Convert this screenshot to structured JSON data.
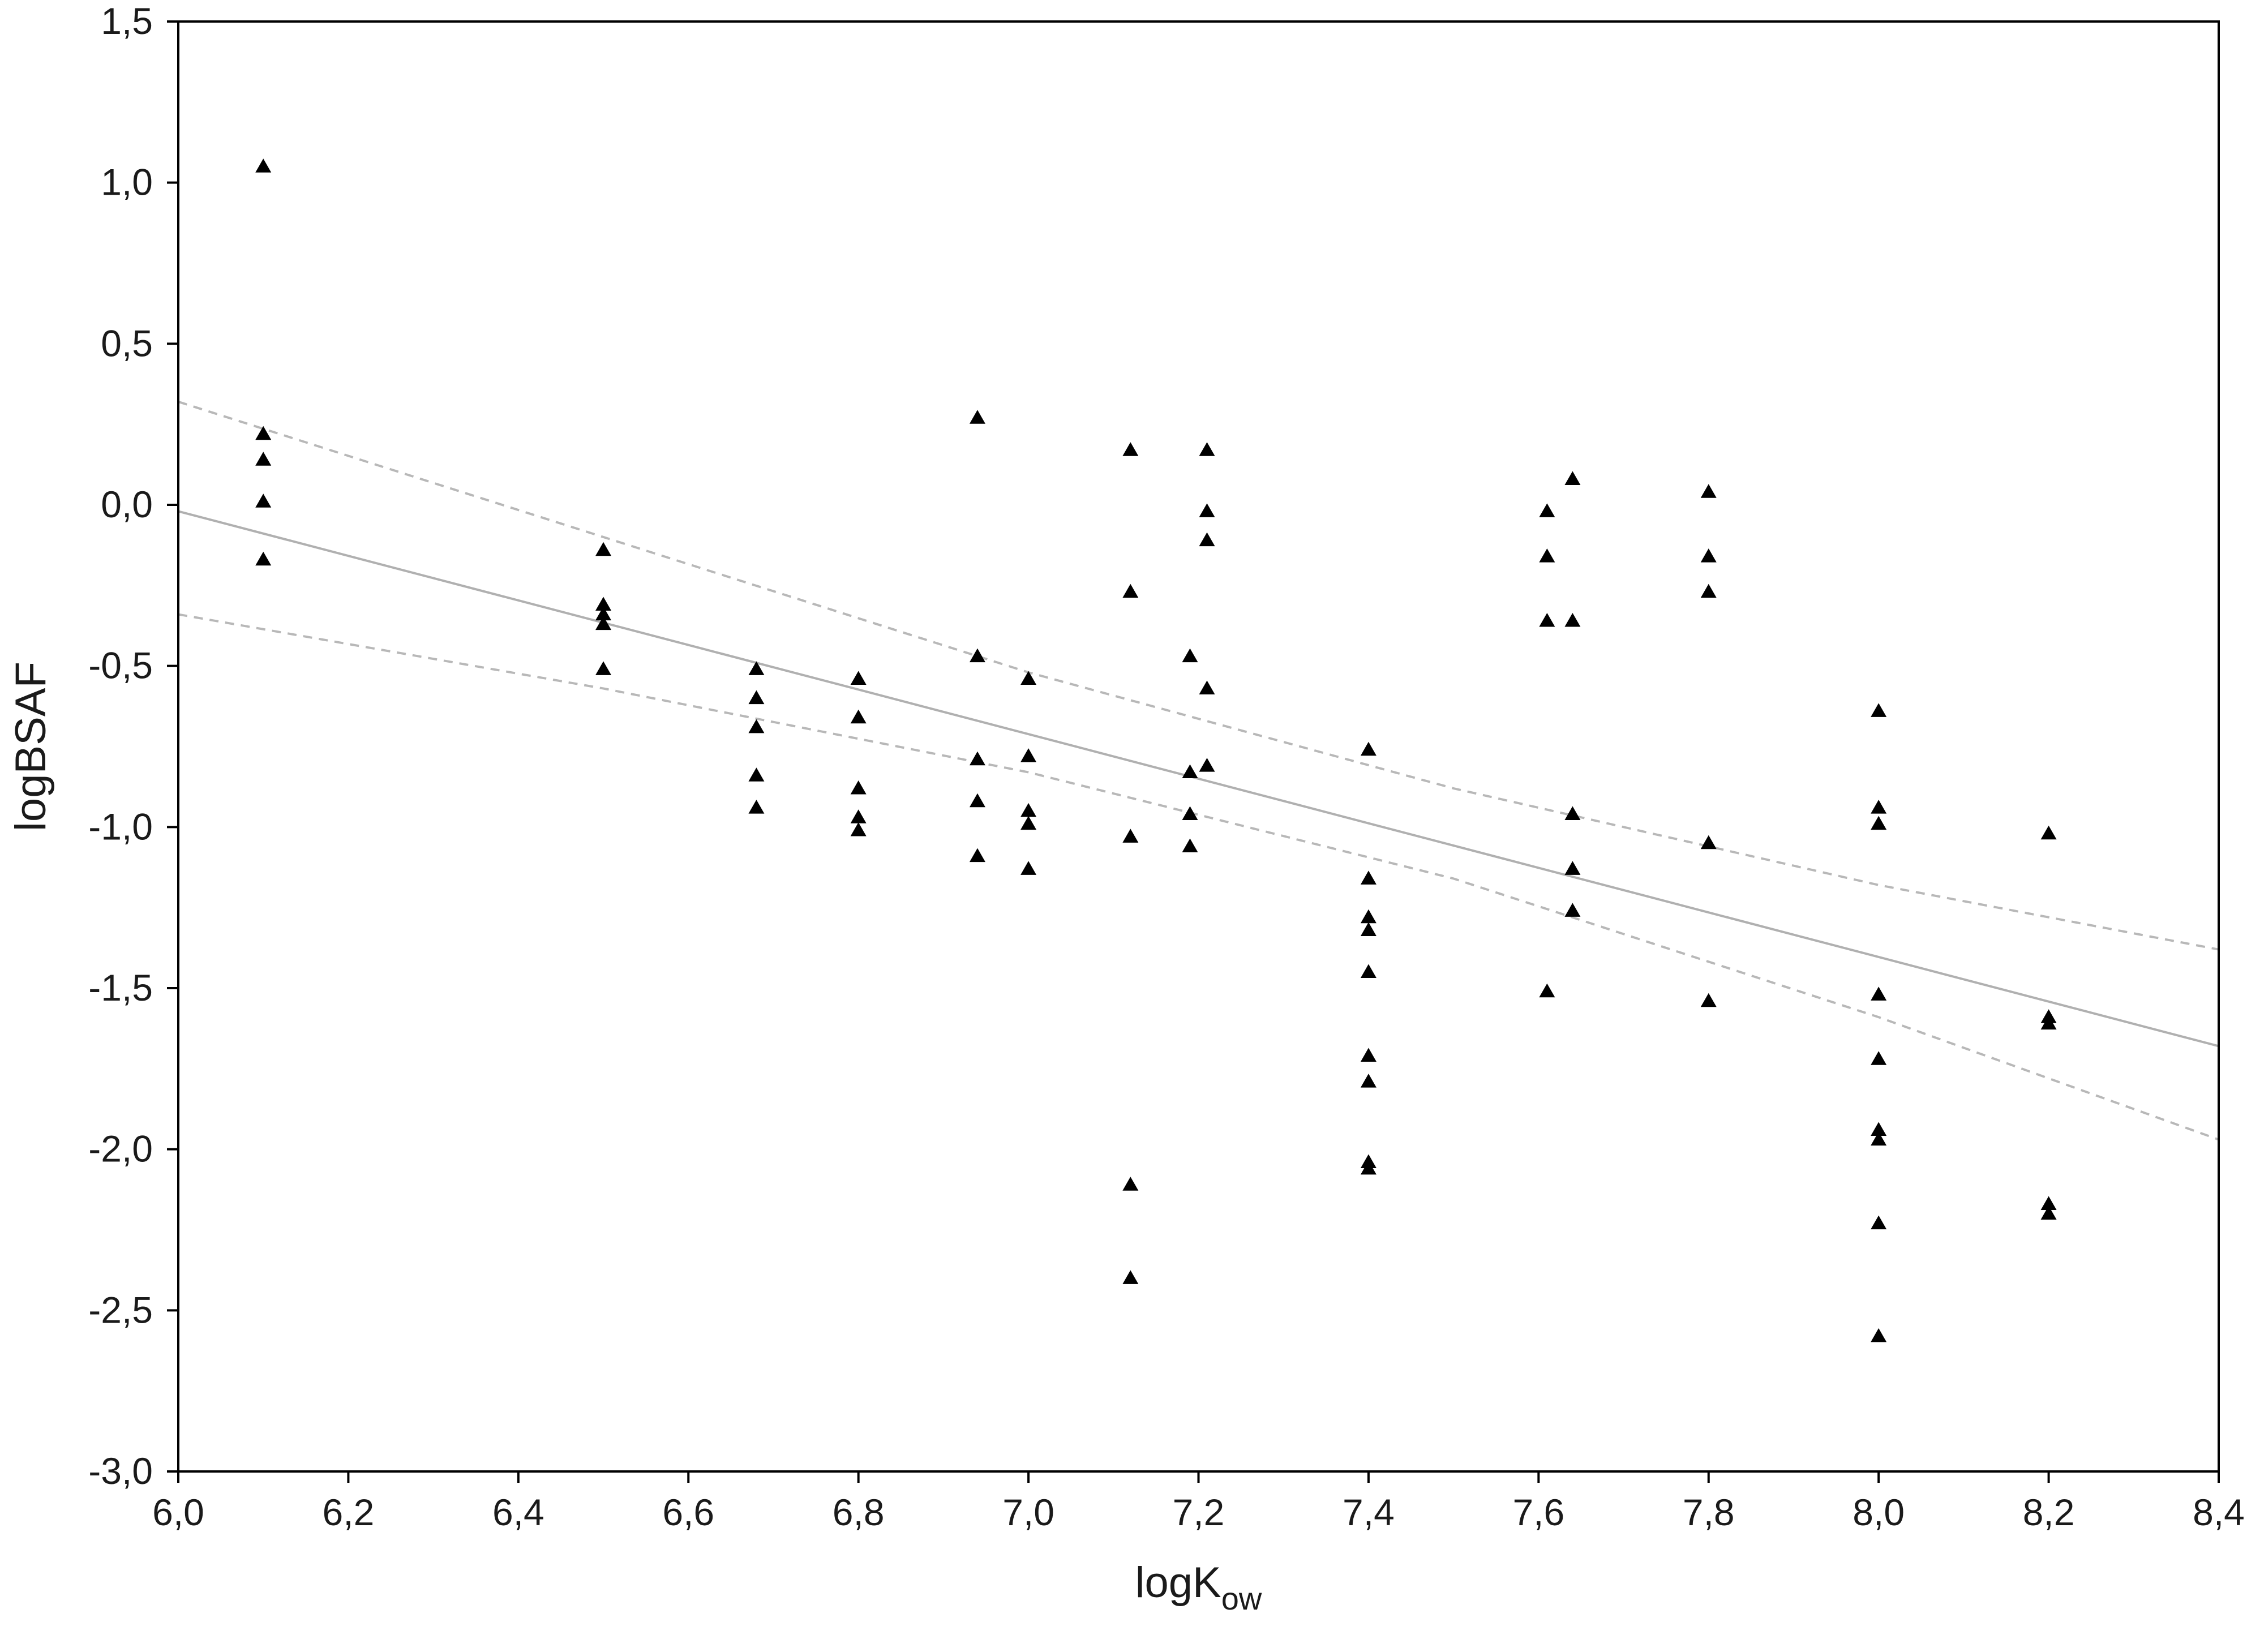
{
  "chart_data": {
    "type": "scatter",
    "title": "",
    "xlabel": "logK",
    "xlabel_subscript": "ow",
    "ylabel": "logBSAF",
    "xlim": [
      6.0,
      8.4
    ],
    "ylim": [
      -3.0,
      1.5
    ],
    "x_ticks": [
      "6,0",
      "6,2",
      "6,4",
      "6,6",
      "6,8",
      "7,0",
      "7,2",
      "7,4",
      "7,6",
      "7,8",
      "8,0",
      "8,2",
      "8,4"
    ],
    "x_tick_values": [
      6.0,
      6.2,
      6.4,
      6.6,
      6.8,
      7.0,
      7.2,
      7.4,
      7.6,
      7.8,
      8.0,
      8.2,
      8.4
    ],
    "y_ticks": [
      "1,5",
      "1,0",
      "0,5",
      "0,0",
      "-0,5",
      "-1,0",
      "-1,5",
      "-2,0",
      "-2,5",
      "-3,0"
    ],
    "y_tick_values": [
      1.5,
      1.0,
      0.5,
      0.0,
      -0.5,
      -1.0,
      -1.5,
      -2.0,
      -2.5,
      -3.0
    ],
    "grid": false,
    "marker": "triangle",
    "colors": {
      "points": "#000000",
      "fit_line": "#b0b0b0",
      "ci_lines": "#b8b8b8",
      "axes": "#000000"
    },
    "points": [
      {
        "x": 6.1,
        "y": 1.05
      },
      {
        "x": 6.1,
        "y": 0.22
      },
      {
        "x": 6.1,
        "y": 0.14
      },
      {
        "x": 6.1,
        "y": 0.01
      },
      {
        "x": 6.1,
        "y": -0.17
      },
      {
        "x": 6.5,
        "y": -0.14
      },
      {
        "x": 6.5,
        "y": -0.31
      },
      {
        "x": 6.5,
        "y": -0.34
      },
      {
        "x": 6.5,
        "y": -0.37
      },
      {
        "x": 6.5,
        "y": -0.51
      },
      {
        "x": 6.68,
        "y": -0.51
      },
      {
        "x": 6.68,
        "y": -0.6
      },
      {
        "x": 6.68,
        "y": -0.69
      },
      {
        "x": 6.68,
        "y": -0.84
      },
      {
        "x": 6.68,
        "y": -0.94
      },
      {
        "x": 6.8,
        "y": -0.54
      },
      {
        "x": 6.8,
        "y": -0.66
      },
      {
        "x": 6.8,
        "y": -0.88
      },
      {
        "x": 6.8,
        "y": -0.97
      },
      {
        "x": 6.8,
        "y": -1.01
      },
      {
        "x": 6.94,
        "y": 0.27
      },
      {
        "x": 6.94,
        "y": -0.47
      },
      {
        "x": 6.94,
        "y": -0.79
      },
      {
        "x": 6.94,
        "y": -0.92
      },
      {
        "x": 6.94,
        "y": -1.09
      },
      {
        "x": 7.0,
        "y": -0.54
      },
      {
        "x": 7.0,
        "y": -0.78
      },
      {
        "x": 7.0,
        "y": -0.95
      },
      {
        "x": 7.0,
        "y": -0.99
      },
      {
        "x": 7.0,
        "y": -1.13
      },
      {
        "x": 7.12,
        "y": 0.17
      },
      {
        "x": 7.12,
        "y": -0.27
      },
      {
        "x": 7.12,
        "y": -1.03
      },
      {
        "x": 7.12,
        "y": -2.11
      },
      {
        "x": 7.12,
        "y": -2.4
      },
      {
        "x": 7.19,
        "y": -0.47
      },
      {
        "x": 7.19,
        "y": -0.83
      },
      {
        "x": 7.19,
        "y": -0.96
      },
      {
        "x": 7.19,
        "y": -1.06
      },
      {
        "x": 7.21,
        "y": 0.17
      },
      {
        "x": 7.21,
        "y": -0.02
      },
      {
        "x": 7.21,
        "y": -0.11
      },
      {
        "x": 7.21,
        "y": -0.57
      },
      {
        "x": 7.21,
        "y": -0.81
      },
      {
        "x": 7.4,
        "y": -0.76
      },
      {
        "x": 7.4,
        "y": -1.16
      },
      {
        "x": 7.4,
        "y": -1.28
      },
      {
        "x": 7.4,
        "y": -1.32
      },
      {
        "x": 7.4,
        "y": -1.45
      },
      {
        "x": 7.4,
        "y": -1.71
      },
      {
        "x": 7.4,
        "y": -1.79
      },
      {
        "x": 7.4,
        "y": -2.04
      },
      {
        "x": 7.4,
        "y": -2.06
      },
      {
        "x": 7.61,
        "y": -0.02
      },
      {
        "x": 7.61,
        "y": -0.16
      },
      {
        "x": 7.61,
        "y": -0.36
      },
      {
        "x": 7.61,
        "y": -1.51
      },
      {
        "x": 7.64,
        "y": 0.08
      },
      {
        "x": 7.64,
        "y": -0.36
      },
      {
        "x": 7.64,
        "y": -0.96
      },
      {
        "x": 7.64,
        "y": -1.13
      },
      {
        "x": 7.64,
        "y": -1.26
      },
      {
        "x": 7.8,
        "y": 0.04
      },
      {
        "x": 7.8,
        "y": -0.16
      },
      {
        "x": 7.8,
        "y": -0.27
      },
      {
        "x": 7.8,
        "y": -1.05
      },
      {
        "x": 7.8,
        "y": -1.54
      },
      {
        "x": 8.0,
        "y": -0.64
      },
      {
        "x": 8.0,
        "y": -0.94
      },
      {
        "x": 8.0,
        "y": -0.99
      },
      {
        "x": 8.0,
        "y": -1.52
      },
      {
        "x": 8.0,
        "y": -1.72
      },
      {
        "x": 8.0,
        "y": -1.94
      },
      {
        "x": 8.0,
        "y": -1.97
      },
      {
        "x": 8.0,
        "y": -2.23
      },
      {
        "x": 8.0,
        "y": -2.58
      },
      {
        "x": 8.2,
        "y": -1.02
      },
      {
        "x": 8.2,
        "y": -1.59
      },
      {
        "x": 8.2,
        "y": -1.61
      },
      {
        "x": 8.2,
        "y": -2.17
      },
      {
        "x": 8.2,
        "y": -2.2
      }
    ],
    "fit_line": {
      "x": [
        6.0,
        8.4
      ],
      "y": [
        -0.02,
        -1.68
      ]
    },
    "confidence_band": {
      "upper": {
        "x": [
          6.0,
          6.5,
          7.0,
          7.5,
          8.0,
          8.4
        ],
        "y": [
          0.32,
          -0.1,
          -0.52,
          -0.88,
          -1.18,
          -1.38
        ]
      },
      "lower": {
        "x": [
          6.0,
          6.5,
          7.0,
          7.5,
          8.0,
          8.4
        ],
        "y": [
          -0.34,
          -0.57,
          -0.83,
          -1.16,
          -1.59,
          -1.97
        ]
      }
    }
  }
}
